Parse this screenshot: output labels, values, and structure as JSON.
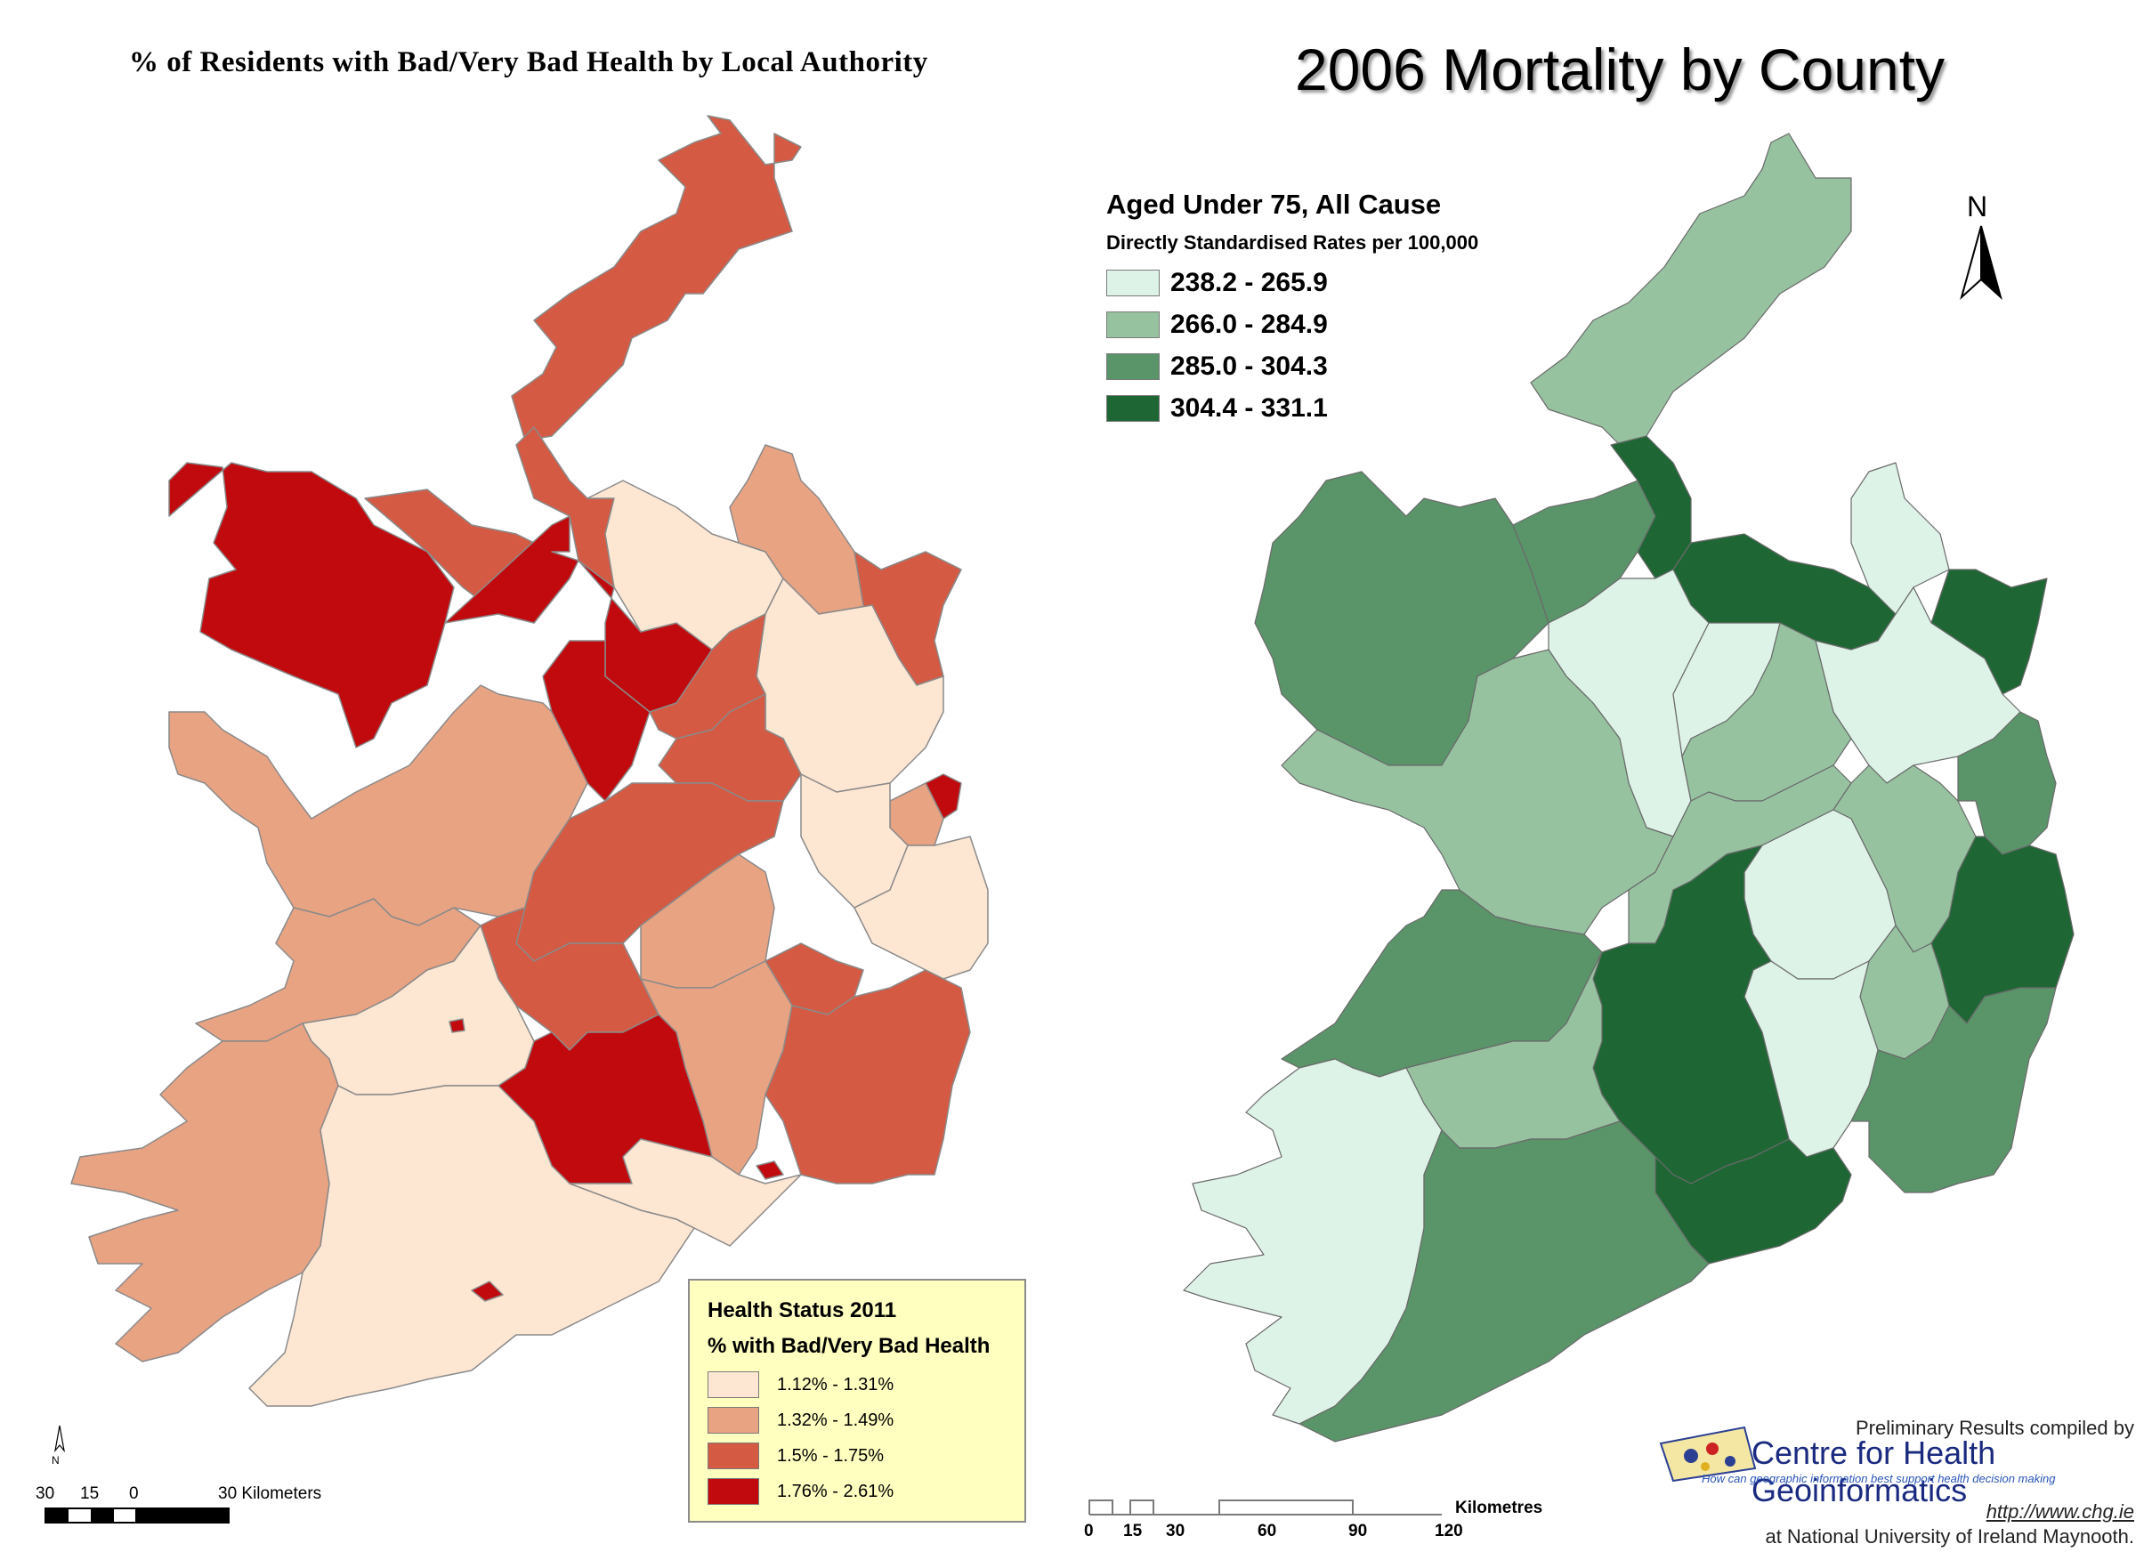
{
  "left_map": {
    "title": "% of Residents with Bad/Very Bad Health by Local Authority",
    "legend": {
      "title": "Health Status 2011",
      "subtitle": "% with Bad/Very Bad Health",
      "classes": [
        {
          "label": "1.12% - 1.31%",
          "color": "#fde6d2"
        },
        {
          "label": "1.32% - 1.49%",
          "color": "#e8a383"
        },
        {
          "label": "1.5% - 1.75%",
          "color": "#d45a44"
        },
        {
          "label": "1.76% - 2.61%",
          "color": "#c00a0e"
        }
      ]
    },
    "north_label": "N",
    "scale_bar": {
      "ticks": [
        "30",
        "15",
        "0",
        "30 Kilometers"
      ]
    }
  },
  "right_map": {
    "title": "2006 Mortality by County",
    "legend": {
      "title": "Aged Under 75, All Cause",
      "subtitle": "Directly Standardised Rates per 100,000",
      "classes": [
        {
          "label": "238.2 - 265.9",
          "color": "#def3e8"
        },
        {
          "label": "266.0 - 284.9",
          "color": "#96c2a0"
        },
        {
          "label": "285.0 - 304.3",
          "color": "#5a9469"
        },
        {
          "label": "304.4 - 331.1",
          "color": "#1f6635"
        }
      ]
    },
    "north_label": "N",
    "scale_bar": {
      "ticks": [
        "0",
        "15",
        "30",
        "60",
        "90",
        "120"
      ],
      "unit": "Kilometres"
    },
    "credits": {
      "line1": "Preliminary Results compiled by",
      "org": "Centre for Health Geoinformatics",
      "tagline": "How can geographic information best support health decision making",
      "url": "http://www.chg.ie",
      "line2": "at National University of Ireland Maynooth."
    }
  }
}
